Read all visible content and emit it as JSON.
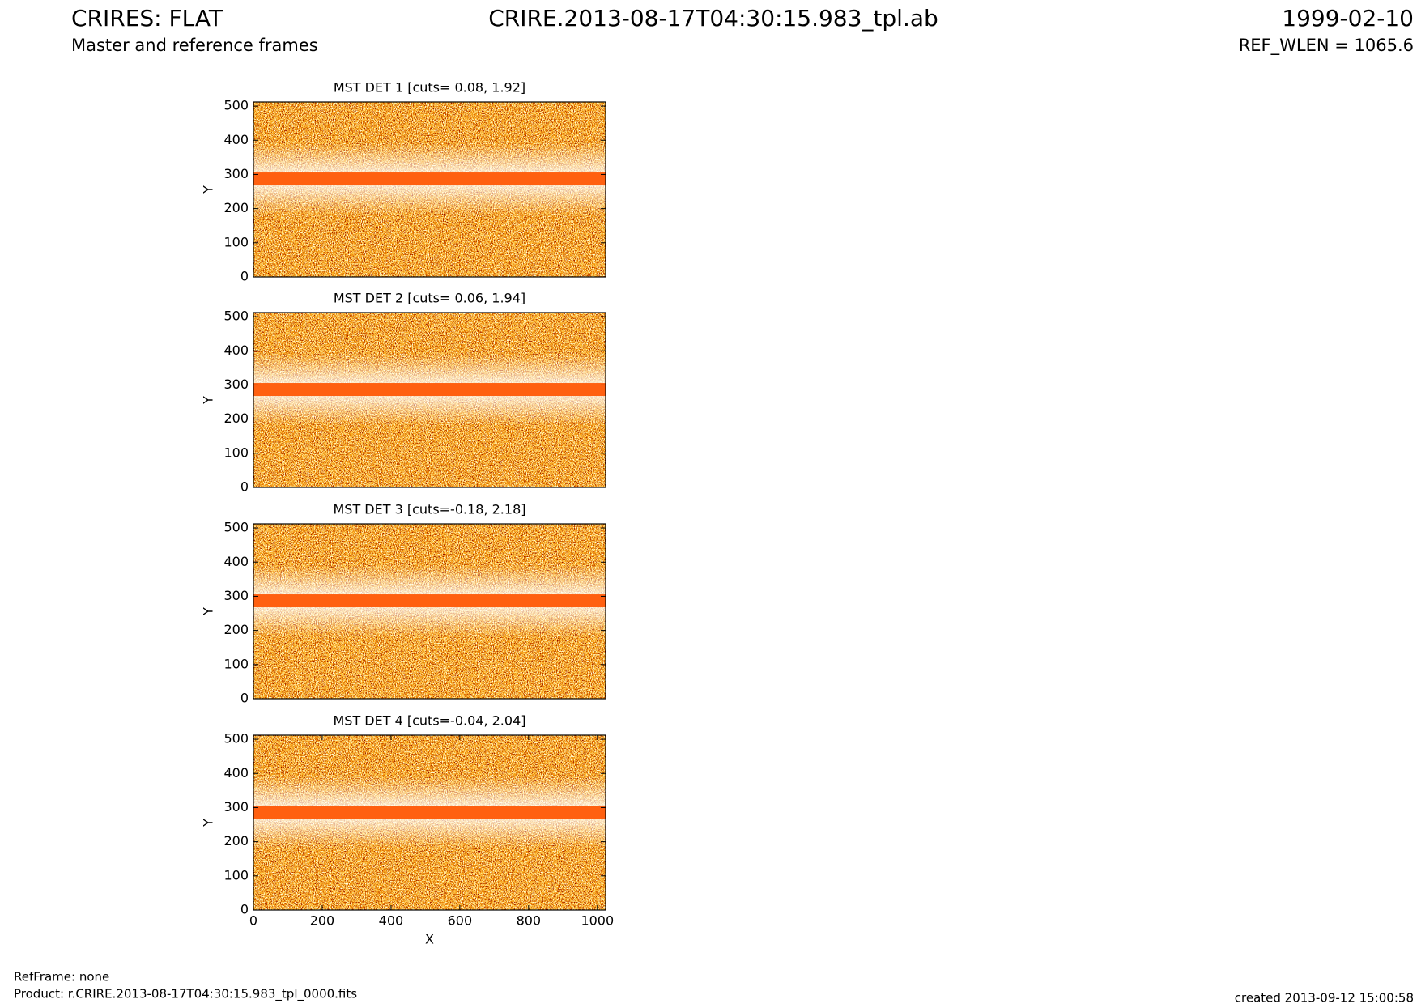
{
  "header": {
    "title": "CRIRES: FLAT",
    "subtitle": "Master and reference frames",
    "filename": "CRIRE.2013-08-17T04:30:15.983_tpl.ab",
    "date": "1999-02-10",
    "ref_wlen": "REF_WLEN = 1065.6"
  },
  "footer": {
    "refframe": "RefFrame: none",
    "product": "Product: r.CRIRE.2013-08-17T04:30:15.983_tpl_0000.fits",
    "created": "created 2013-09-12 15:00:58"
  },
  "chart_data": [
    {
      "type": "image",
      "title": "MST DET 1 [cuts= 0.08, 1.92]",
      "ylabel": "Y",
      "xlim": [
        0,
        1024
      ],
      "ylim": [
        0,
        512
      ],
      "yticks": [
        0,
        100,
        200,
        300,
        400,
        500
      ]
    },
    {
      "type": "image",
      "title": "MST DET 2 [cuts= 0.06, 1.94]",
      "ylabel": "Y",
      "xlim": [
        0,
        1024
      ],
      "ylim": [
        0,
        512
      ],
      "yticks": [
        0,
        100,
        200,
        300,
        400,
        500
      ]
    },
    {
      "type": "image",
      "title": "MST DET 3 [cuts=-0.18, 2.18]",
      "ylabel": "Y",
      "xlim": [
        0,
        1024
      ],
      "ylim": [
        0,
        512
      ],
      "yticks": [
        0,
        100,
        200,
        300,
        400,
        500
      ]
    },
    {
      "type": "image",
      "title": "MST DET 4 [cuts=-0.04, 2.04]",
      "ylabel": "Y",
      "xlabel": "X",
      "xlim": [
        0,
        1024
      ],
      "ylim": [
        0,
        512
      ],
      "yticks": [
        0,
        100,
        200,
        300,
        400,
        500
      ],
      "xticks": [
        0,
        200,
        400,
        600,
        800,
        1000
      ]
    }
  ]
}
